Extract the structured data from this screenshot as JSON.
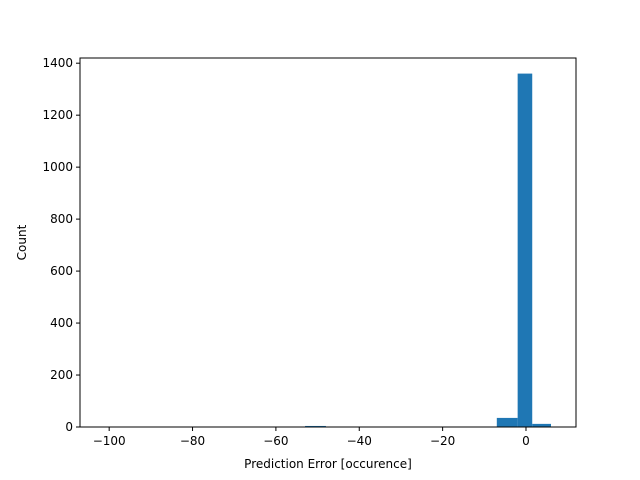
{
  "chart_data": {
    "type": "bar",
    "title": "",
    "xlabel": "Prediction Error [occurence]",
    "ylabel": "Count",
    "xlim": [
      -107,
      12
    ],
    "ylim": [
      0,
      1420
    ],
    "grid": false,
    "bar_color": "#1f77b4",
    "bins": [
      {
        "x0": -103,
        "x1": -98,
        "value": 1
      },
      {
        "x0": -53,
        "x1": -48,
        "value": 4
      },
      {
        "x0": -7,
        "x1": -2,
        "value": 35
      },
      {
        "x0": -2,
        "x1": 1.5,
        "value": 1360
      },
      {
        "x0": 1.5,
        "x1": 6,
        "value": 12
      }
    ],
    "xticks": [
      -100,
      -80,
      -60,
      -40,
      -20,
      0
    ],
    "xtick_labels": [
      "−100",
      "−80",
      "−60",
      "−40",
      "−20",
      "0"
    ],
    "yticks": [
      0,
      200,
      400,
      600,
      800,
      1000,
      1200,
      1400
    ],
    "ytick_labels": [
      "0",
      "200",
      "400",
      "600",
      "800",
      "1000",
      "1200",
      "1400"
    ]
  }
}
